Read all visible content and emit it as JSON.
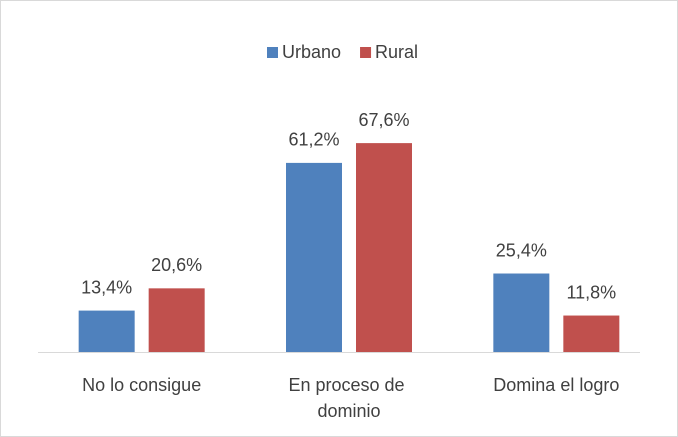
{
  "chart_data": {
    "type": "bar",
    "categories": [
      "No lo consigue",
      "En proceso de dominio",
      "Domina el logro"
    ],
    "series": [
      {
        "name": "Urbano",
        "color": "#4f81bd",
        "values": [
          13.4,
          61.2,
          25.4
        ],
        "value_labels": [
          "13,4%",
          "61,2%",
          "25,4%"
        ]
      },
      {
        "name": "Rural",
        "color": "#c0504d",
        "values": [
          20.6,
          67.6,
          11.8
        ],
        "value_labels": [
          "20,6%",
          "67,6%",
          "11,8%"
        ]
      }
    ],
    "legend": "top"
  }
}
